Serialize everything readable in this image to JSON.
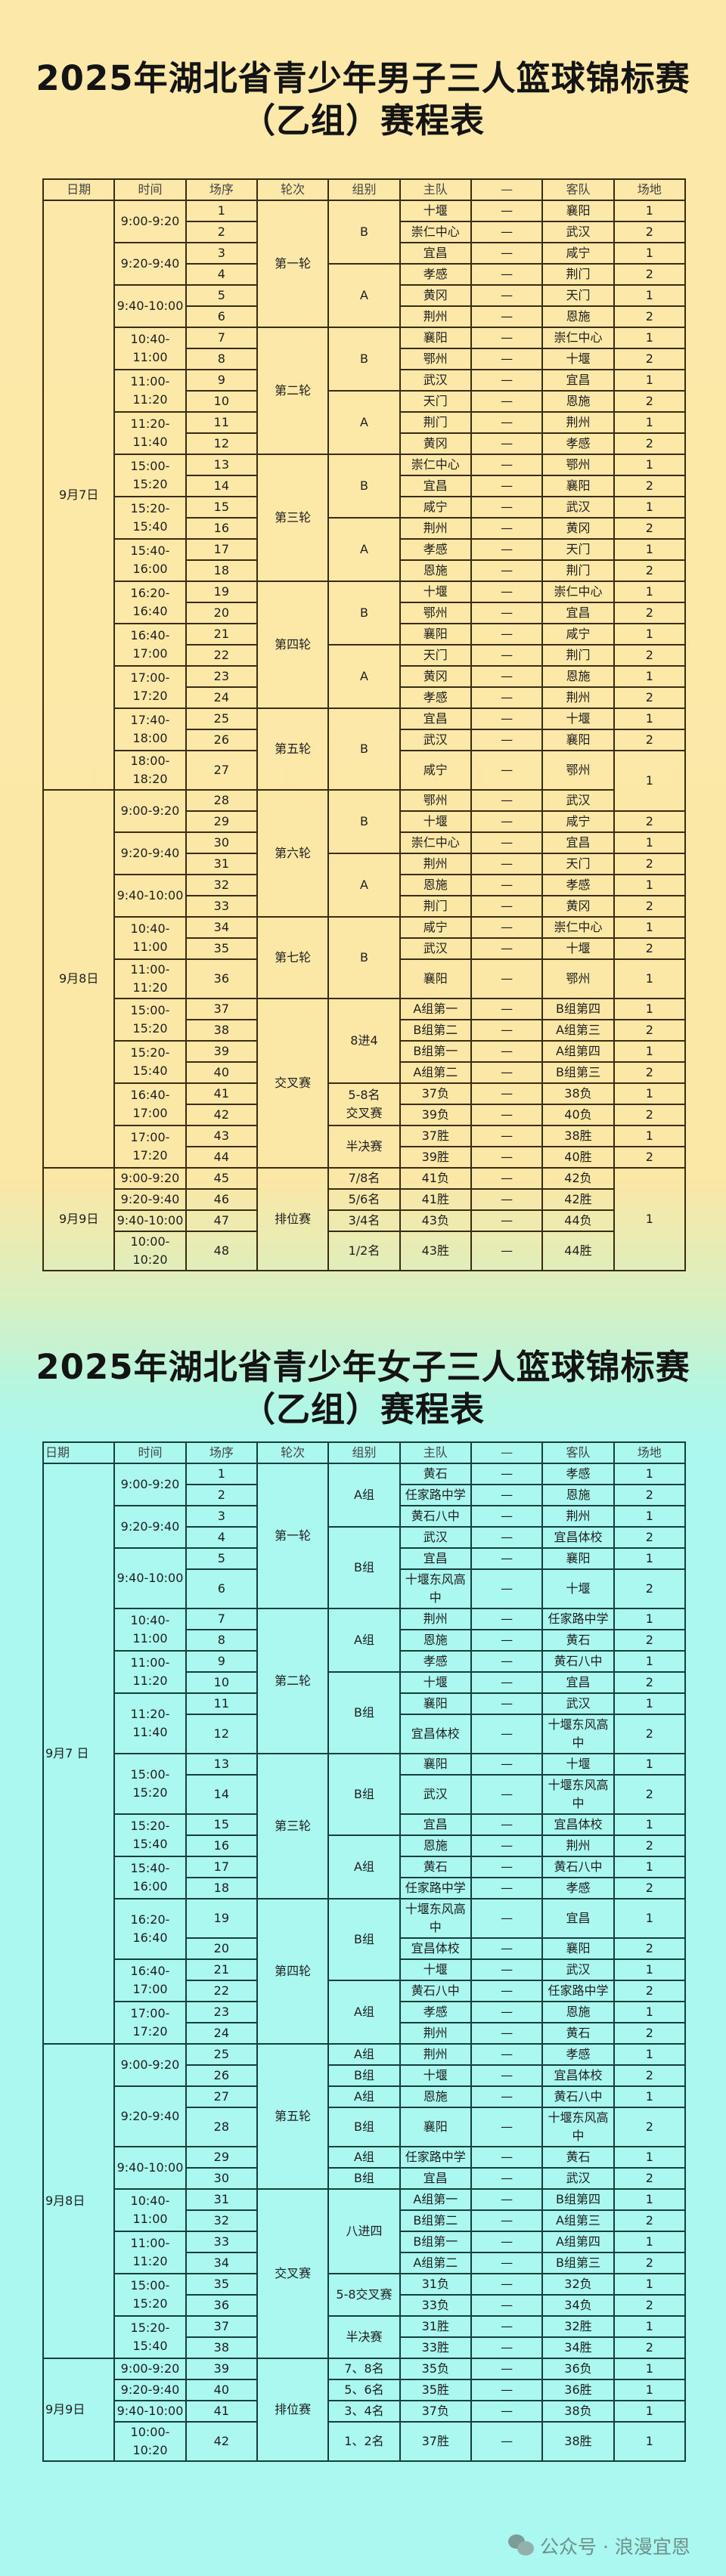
{
  "vs": "—",
  "headers": [
    "日期",
    "时间",
    "场序",
    "轮次",
    "组别",
    "主队",
    "—",
    "客队",
    "场地"
  ],
  "colors": {
    "men_background": "#fce8a8",
    "women_background": "#aaf8f0",
    "men_line": "#3a2c10",
    "women_line": "#14403c"
  },
  "men": {
    "title_line1": "2025年湖北省青少年男子三人篮球锦标赛",
    "title_line2": "（乙组）赛程表",
    "rows": [
      [
        "9月7日",
        "9:00-9:20",
        "1",
        "第一轮",
        "B",
        "十堰",
        "襄阳",
        "1"
      ],
      [
        null,
        null,
        "2",
        null,
        null,
        "崇仁中心",
        "武汉",
        "2"
      ],
      [
        null,
        "9:20-9:40",
        "3",
        null,
        null,
        "宜昌",
        "咸宁",
        "1"
      ],
      [
        null,
        null,
        "4",
        null,
        "A",
        "孝感",
        "荆门",
        "2"
      ],
      [
        null,
        "9:40-10:00",
        "5",
        null,
        null,
        "黄冈",
        "天门",
        "1"
      ],
      [
        null,
        null,
        "6",
        null,
        null,
        "荆州",
        "恩施",
        "2"
      ],
      [
        null,
        "10:40-11:00",
        "7",
        "第二轮",
        "B",
        "襄阳",
        "崇仁中心",
        "1"
      ],
      [
        null,
        null,
        "8",
        null,
        null,
        "鄂州",
        "十堰",
        "2"
      ],
      [
        null,
        "11:00-11:20",
        "9",
        null,
        null,
        "武汉",
        "宜昌",
        "1"
      ],
      [
        null,
        null,
        "10",
        null,
        "A",
        "天门",
        "恩施",
        "2"
      ],
      [
        null,
        "11:20-11:40",
        "11",
        null,
        null,
        "荆门",
        "荆州",
        "1"
      ],
      [
        null,
        null,
        "12",
        null,
        null,
        "黄冈",
        "孝感",
        "2"
      ],
      [
        null,
        "15:00-15:20",
        "13",
        "第三轮",
        "B",
        "崇仁中心",
        "鄂州",
        "1"
      ],
      [
        null,
        null,
        "14",
        null,
        null,
        "宜昌",
        "襄阳",
        "2"
      ],
      [
        null,
        "15:20-15:40",
        "15",
        null,
        null,
        "咸宁",
        "武汉",
        "1"
      ],
      [
        null,
        null,
        "16",
        null,
        "A",
        "荆州",
        "黄冈",
        "2"
      ],
      [
        null,
        "15:40-16:00",
        "17",
        null,
        null,
        "孝感",
        "天门",
        "1"
      ],
      [
        null,
        null,
        "18",
        null,
        null,
        "恩施",
        "荆门",
        "2"
      ],
      [
        null,
        "16:20-16:40",
        "19",
        "第四轮",
        "B",
        "十堰",
        "崇仁中心",
        "1"
      ],
      [
        null,
        null,
        "20",
        null,
        null,
        "鄂州",
        "宜昌",
        "2"
      ],
      [
        null,
        "16:40-17:00",
        "21",
        null,
        null,
        "襄阳",
        "咸宁",
        "1"
      ],
      [
        null,
        null,
        "22",
        null,
        "A",
        "天门",
        "荆门",
        "2"
      ],
      [
        null,
        "17:00-17:20",
        "23",
        null,
        null,
        "黄冈",
        "恩施",
        "1"
      ],
      [
        null,
        null,
        "24",
        null,
        null,
        "孝感",
        "荆州",
        "2"
      ],
      [
        null,
        "17:40-18:00",
        "25",
        "第五轮",
        "B",
        "宜昌",
        "十堰",
        "1"
      ],
      [
        null,
        null,
        "26",
        null,
        null,
        "武汉",
        "襄阳",
        "2"
      ],
      [
        null,
        "18:00-18:20",
        "27",
        null,
        null,
        "咸宁",
        "鄂州",
        "1"
      ],
      [
        "9月8日",
        "9:00-9:20",
        "28",
        "第六轮",
        "B",
        "鄂州",
        "武汉",
        null
      ],
      [
        null,
        null,
        "29",
        null,
        null,
        "十堰",
        "咸宁",
        "2"
      ],
      [
        null,
        "9:20-9:40",
        "30",
        null,
        null,
        "崇仁中心",
        "宜昌",
        "1"
      ],
      [
        null,
        null,
        "31",
        null,
        "A",
        "荆州",
        "天门",
        "2"
      ],
      [
        null,
        "9:40-10:00",
        "32",
        null,
        null,
        "恩施",
        "孝感",
        "1"
      ],
      [
        null,
        null,
        "33",
        null,
        null,
        "荆门",
        "黄冈",
        "2"
      ],
      [
        null,
        "10:40-11:00",
        "34",
        "第七轮",
        "B",
        "咸宁",
        "崇仁中心",
        "1"
      ],
      [
        null,
        null,
        "35",
        null,
        null,
        "武汉",
        "十堰",
        "2"
      ],
      [
        null,
        "11:00-11:20",
        "36",
        null,
        null,
        "襄阳",
        "鄂州",
        "1"
      ],
      [
        null,
        "15:00-15:20",
        "37",
        "交叉赛",
        "8进4",
        "A组第一",
        "B组第四",
        "1"
      ],
      [
        null,
        null,
        "38",
        null,
        null,
        "B组第二",
        "A组第三",
        "2"
      ],
      [
        null,
        "15:20-15:40",
        "39",
        null,
        null,
        "B组第一",
        "A组第四",
        "1"
      ],
      [
        null,
        null,
        "40",
        null,
        null,
        "A组第二",
        "B组第三",
        "2"
      ],
      [
        null,
        "16:40-17:00",
        "41",
        null,
        "5-8名\n交叉赛",
        "37负",
        "38负",
        "1"
      ],
      [
        null,
        null,
        "42",
        null,
        null,
        "39负",
        "40负",
        "2"
      ],
      [
        null,
        "17:00-17:20",
        "43",
        null,
        "半决赛",
        "37胜",
        "38胜",
        "1"
      ],
      [
        null,
        null,
        "44",
        null,
        null,
        "39胜",
        "40胜",
        "2"
      ],
      [
        "9月9日",
        "9:00-9:20",
        "45",
        "排位赛",
        "7/8名",
        "41负",
        "42负",
        "1"
      ],
      [
        null,
        "9:20-9:40",
        "46",
        null,
        "5/6名",
        "41胜",
        "42胜",
        null
      ],
      [
        null,
        "9:40-10:00",
        "47",
        null,
        "3/4名",
        "43负",
        "44负",
        null
      ],
      [
        null,
        "10:00-10:20",
        "48",
        null,
        "1/2名",
        "43胜",
        "44胜",
        null
      ]
    ]
  },
  "women": {
    "title_line1": "2025年湖北省青少年女子三人篮球锦标赛",
    "title_line2": "（乙组）赛程表",
    "rows": [
      [
        "9月7 日",
        "9:00-9:20",
        "1",
        "第一轮",
        "A组",
        "黄石",
        "孝感",
        "1"
      ],
      [
        null,
        null,
        "2",
        null,
        null,
        "任家路中学",
        "恩施",
        "2"
      ],
      [
        null,
        "9:20-9:40",
        "3",
        null,
        null,
        "黄石八中",
        "荆州",
        "1"
      ],
      [
        null,
        null,
        "4",
        null,
        "B组",
        "武汉",
        "宜昌体校",
        "2"
      ],
      [
        null,
        "9:40-10:00",
        "5",
        null,
        null,
        "宜昌",
        "襄阳",
        "1"
      ],
      [
        null,
        null,
        "6",
        null,
        null,
        "十堰东风高中",
        "十堰",
        "2"
      ],
      [
        null,
        "10:40-11:00",
        "7",
        "第二轮",
        "A组",
        "荆州",
        "任家路中学",
        "1"
      ],
      [
        null,
        null,
        "8",
        null,
        null,
        "恩施",
        "黄石",
        "2"
      ],
      [
        null,
        "11:00-11:20",
        "9",
        null,
        null,
        "孝感",
        "黄石八中",
        "1"
      ],
      [
        null,
        null,
        "10",
        null,
        "B组",
        "十堰",
        "宜昌",
        "2"
      ],
      [
        null,
        "11:20-11:40",
        "11",
        null,
        null,
        "襄阳",
        "武汉",
        "1"
      ],
      [
        null,
        null,
        "12",
        null,
        null,
        "宜昌体校",
        "十堰东风高中",
        "2"
      ],
      [
        null,
        "15:00-15:20",
        "13",
        "第三轮",
        "B组",
        "襄阳",
        "十堰",
        "1"
      ],
      [
        null,
        null,
        "14",
        null,
        null,
        "武汉",
        "十堰东风高中",
        "2"
      ],
      [
        null,
        "15:20-15:40",
        "15",
        null,
        null,
        "宜昌",
        "宜昌体校",
        "1"
      ],
      [
        null,
        null,
        "16",
        null,
        "A组",
        "恩施",
        "荆州",
        "2"
      ],
      [
        null,
        "15:40-16:00",
        "17",
        null,
        null,
        "黄石",
        "黄石八中",
        "1"
      ],
      [
        null,
        null,
        "18",
        null,
        null,
        "任家路中学",
        "孝感",
        "2"
      ],
      [
        null,
        "16:20-16:40",
        "19",
        "第四轮",
        "B组",
        "十堰东风高中",
        "宜昌",
        "1"
      ],
      [
        null,
        null,
        "20",
        null,
        null,
        "宜昌体校",
        "襄阳",
        "2"
      ],
      [
        null,
        "16:40-17:00",
        "21",
        null,
        null,
        "十堰",
        "武汉",
        "1"
      ],
      [
        null,
        null,
        "22",
        null,
        "A组",
        "黄石八中",
        "任家路中学",
        "2"
      ],
      [
        null,
        "17:00-17:20",
        "23",
        null,
        null,
        "孝感",
        "恩施",
        "1"
      ],
      [
        null,
        null,
        "24",
        null,
        null,
        "荆州",
        "黄石",
        "2"
      ],
      [
        "9月8日",
        "9:00-9:20",
        "25",
        "第五轮",
        "A组",
        "荆州",
        "孝感",
        "1"
      ],
      [
        null,
        null,
        "26",
        null,
        "B组",
        "十堰",
        "宜昌体校",
        "2"
      ],
      [
        null,
        "9:20-9:40",
        "27",
        null,
        "A组",
        "恩施",
        "黄石八中",
        "1"
      ],
      [
        null,
        null,
        "28",
        null,
        "B组",
        "襄阳",
        "十堰东风高中",
        "2"
      ],
      [
        null,
        "9:40-10:00",
        "29",
        null,
        "A组",
        "任家路中学",
        "黄石",
        "1"
      ],
      [
        null,
        null,
        "30",
        null,
        "B组",
        "宜昌",
        "武汉",
        "2"
      ],
      [
        null,
        "10:40-11:00",
        "31",
        "交叉赛",
        "八进四",
        "A组第一",
        "B组第四",
        "1"
      ],
      [
        null,
        null,
        "32",
        null,
        null,
        "B组第二",
        "A组第三",
        "2"
      ],
      [
        null,
        "11:00-11:20",
        "33",
        null,
        null,
        "B组第一",
        "A组第四",
        "1"
      ],
      [
        null,
        null,
        "34",
        null,
        null,
        "A组第二",
        "B组第三",
        "2"
      ],
      [
        null,
        "15:00-15:20",
        "35",
        null,
        "5-8交叉赛",
        "31负",
        "32负",
        "1"
      ],
      [
        null,
        null,
        "36",
        null,
        null,
        "33负",
        "34负",
        "2"
      ],
      [
        null,
        "15:20-15:40",
        "37",
        null,
        "半决赛",
        "31胜",
        "32胜",
        "1"
      ],
      [
        null,
        null,
        "38",
        null,
        null,
        "33胜",
        "34胜",
        "2"
      ],
      [
        "9月9日",
        "9:00-9:20",
        "39",
        "排位赛",
        "7、8名",
        "35负",
        "36负",
        "1"
      ],
      [
        null,
        "9:20-9:40",
        "40",
        null,
        "5、6名",
        "35胜",
        "36胜",
        "1"
      ],
      [
        null,
        "9:40-10:00",
        "41",
        null,
        "3、4名",
        "37负",
        "38负",
        "1"
      ],
      [
        null,
        "10:00-10:20",
        "42",
        null,
        "1、2名",
        "37胜",
        "38胜",
        "1"
      ]
    ]
  },
  "watermark": {
    "icon": "wechat-icon",
    "text": "公众号 · 浪漫宜恩"
  }
}
